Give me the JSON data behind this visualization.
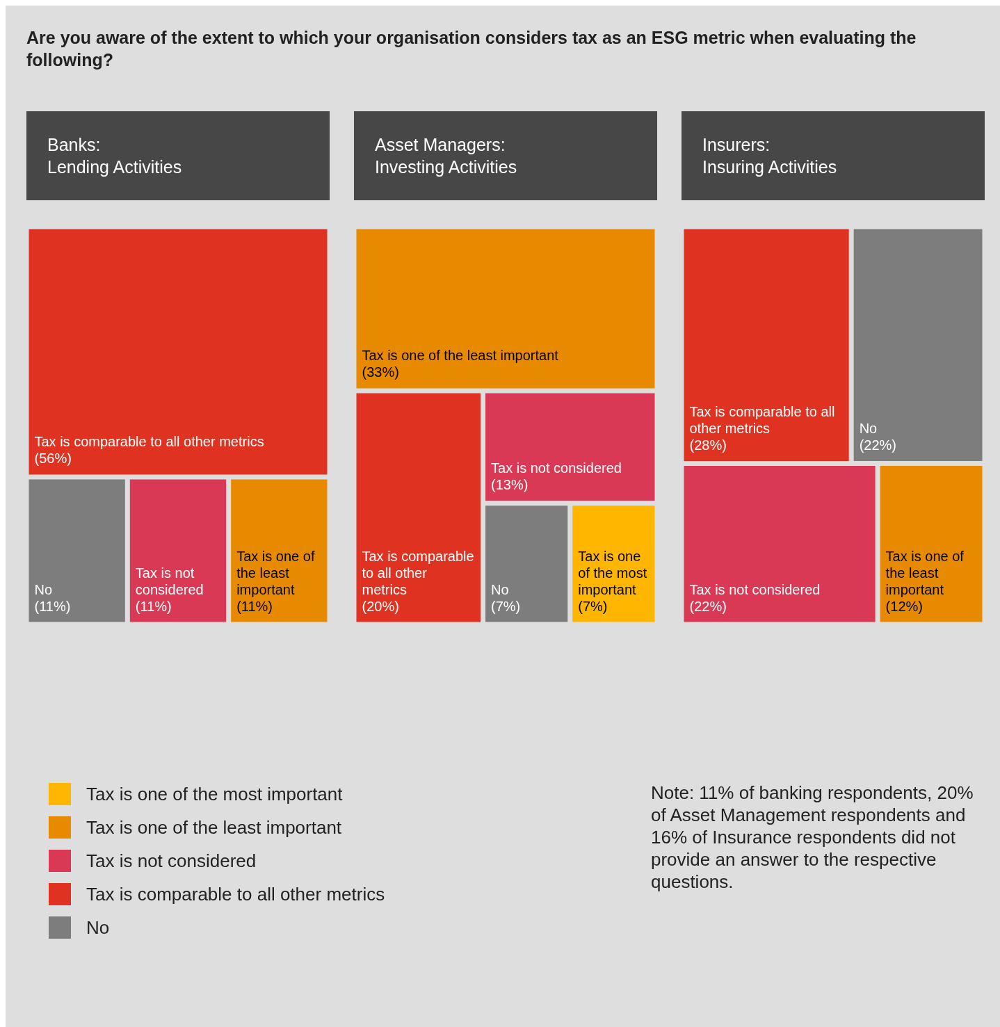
{
  "chart_data": [
    {
      "type": "other",
      "title": "Are you aware of the extent to which your organisation considers tax as an ESG metric when evaluating the following?"
    },
    {
      "type": "other",
      "title": "Banks:\nLending Activities",
      "categories": [
        "Tax is comparable to all other metrics",
        "No",
        "Tax is not considered",
        "Tax is one of the least important"
      ],
      "values": [
        56,
        11,
        11,
        11
      ],
      "value_labels": [
        "(56%)",
        "(11%)",
        "(11%)",
        "(11%)"
      ],
      "colors": [
        "#e03220",
        "#7d7d7d",
        "#d93954",
        "#e88a00"
      ]
    },
    {
      "type": "other",
      "title": "Asset Managers:\nInvesting Activities",
      "categories": [
        "Tax is one of the least important",
        "Tax is comparable to all other metrics",
        "Tax is not considered",
        "No",
        "Tax is one of the most important"
      ],
      "values": [
        33,
        20,
        13,
        7,
        7
      ],
      "value_labels": [
        "(33%)",
        "(20%)",
        "(13%)",
        "(7%)",
        "(7%)"
      ],
      "colors": [
        "#e88a00",
        "#e03220",
        "#d93954",
        "#7d7d7d",
        "#ffb600"
      ]
    },
    {
      "type": "other",
      "title": "Insurers:\nInsuring Activities",
      "categories": [
        "Tax is comparable to all other metrics",
        "No",
        "Tax is not considered",
        "Tax is one of the least important"
      ],
      "values": [
        28,
        22,
        22,
        12
      ],
      "value_labels": [
        "(28%)",
        "(22%)",
        "(22%)",
        "(12%)"
      ],
      "colors": [
        "#e03220",
        "#7d7d7d",
        "#d93954",
        "#e88a00"
      ]
    },
    {
      "type": "other",
      "categories": [
        "Tax is one of the most important",
        "Tax is one of the least important",
        "Tax is not considered",
        "Tax is comparable to all other metrics",
        "No"
      ],
      "colors": [
        "#ffb600",
        "#e88a00",
        "#d93954",
        "#e03220",
        "#7d7d7d"
      ],
      "annotations": [
        "Note: 11% of banking respondents, 20% of Asset Management respondents and 16% of Insurance respondents did not provide an answer to the respective questions."
      ]
    }
  ]
}
